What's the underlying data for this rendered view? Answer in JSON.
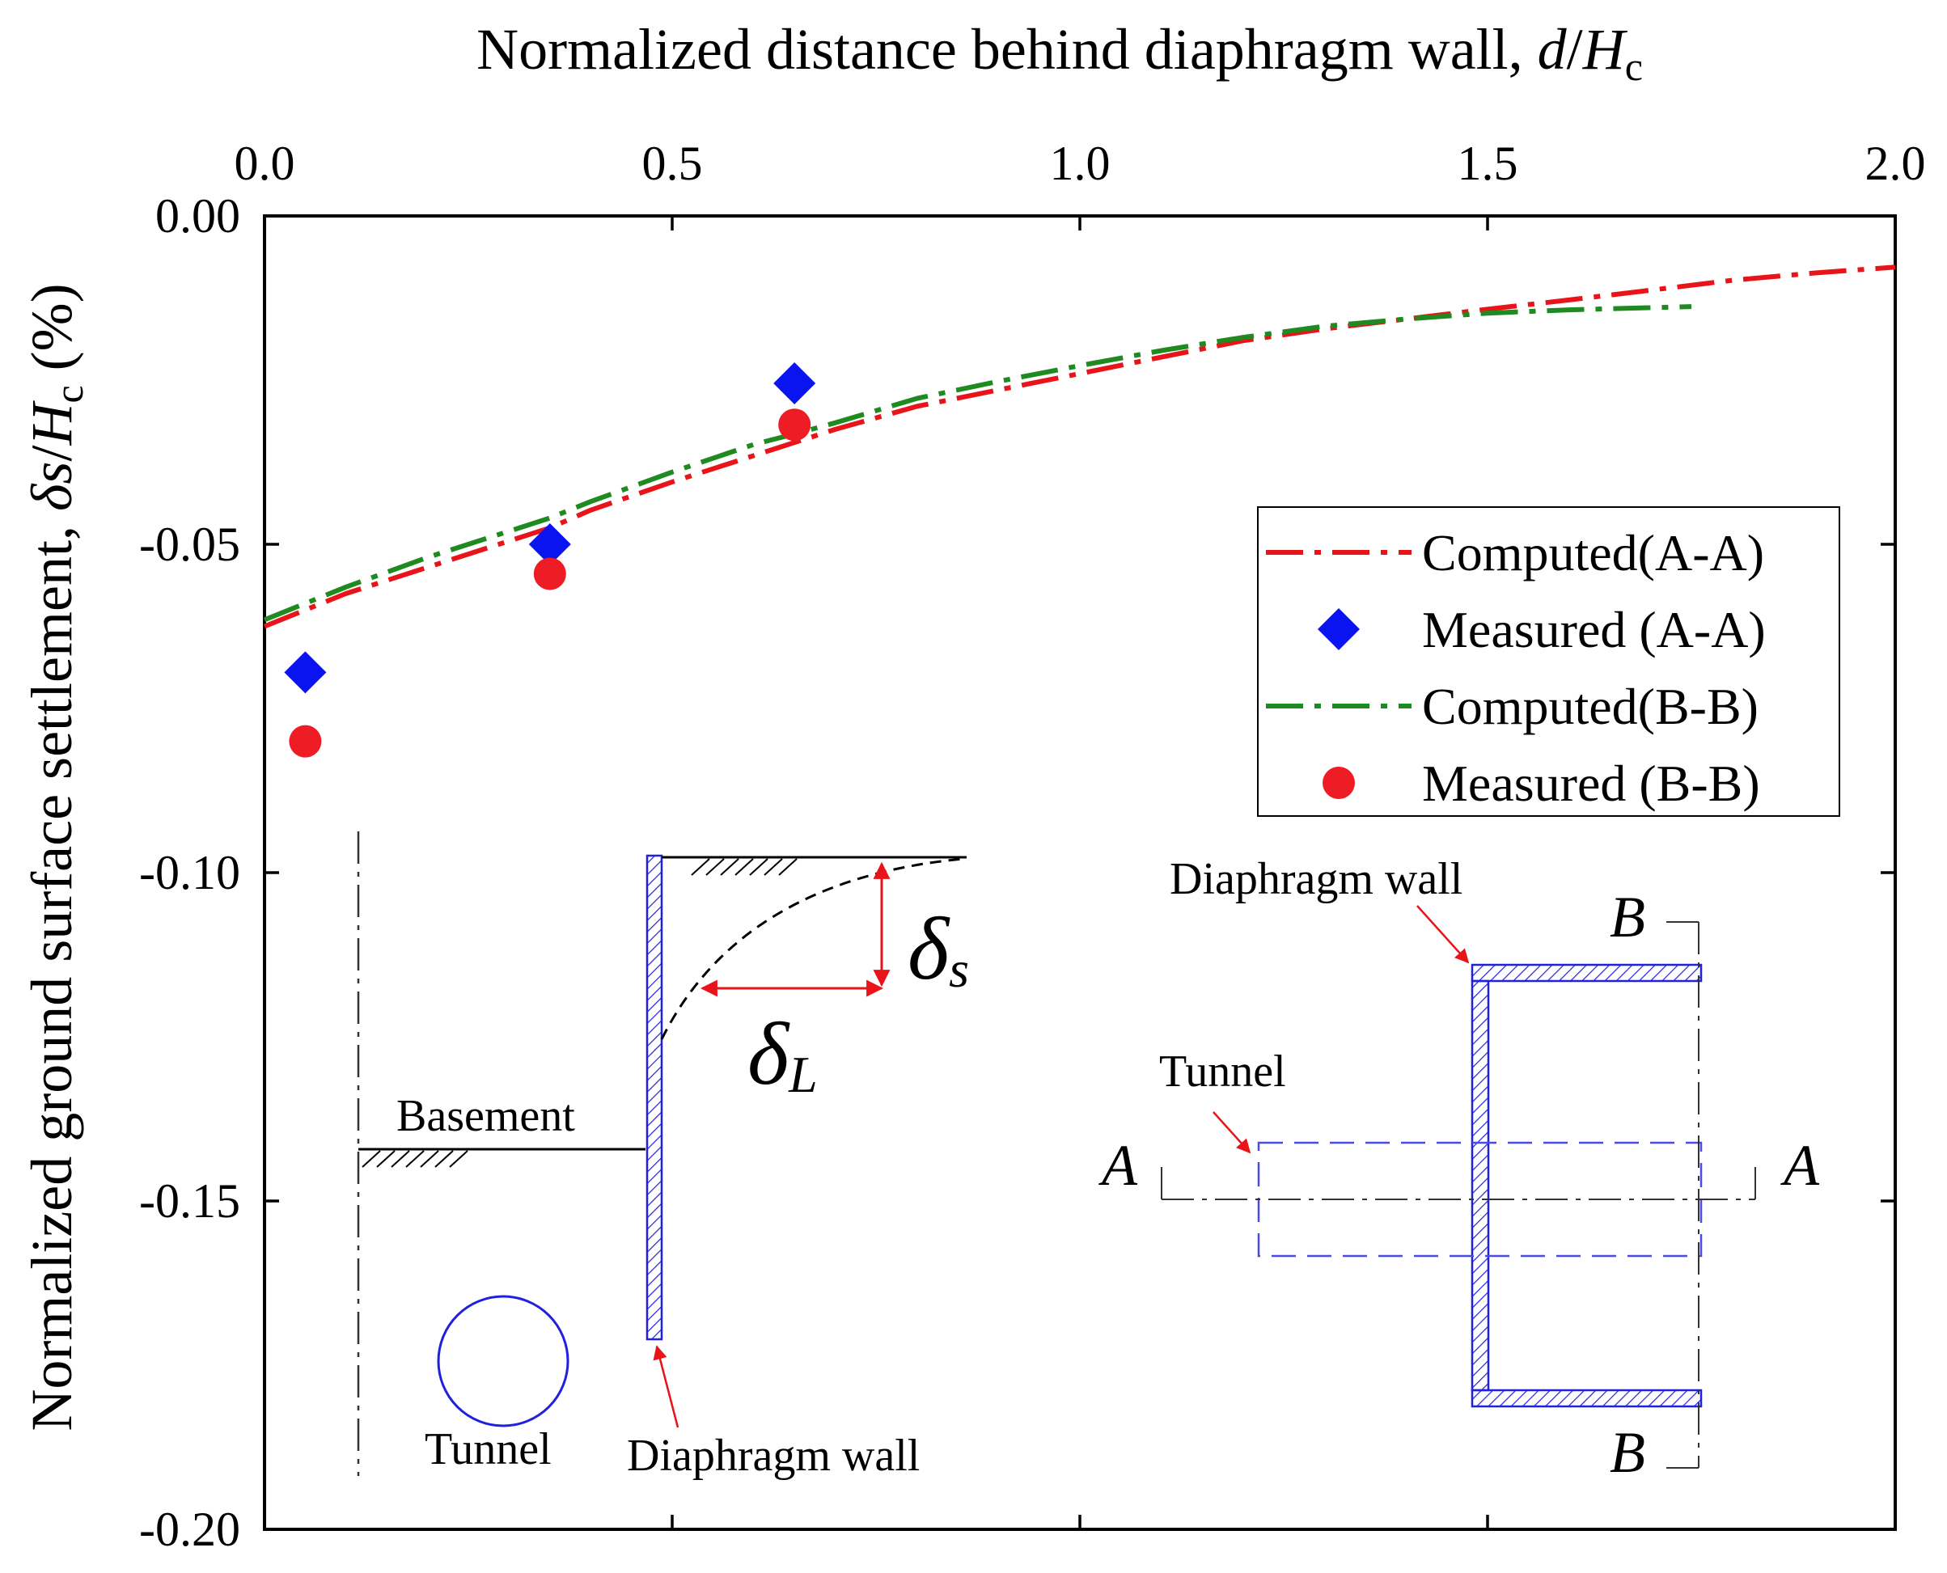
{
  "chart_data": {
    "type": "line",
    "title": "",
    "xlabel": {
      "prefix": "Normalized distance behind diaphragm wall, ",
      "var_italic": "d",
      "slash": "/",
      "var2_italic": "H",
      "sub": "c"
    },
    "ylabel": {
      "prefix": "Normalized ground surface settlement, ",
      "delta": "δ",
      "var_italic": "s",
      "slash": "/",
      "var2_italic": "H",
      "sub": "c",
      "suffix": " (%)"
    },
    "x_axis_position": "top",
    "xlim": [
      0,
      2.0
    ],
    "ylim": [
      -0.2,
      0.0
    ],
    "x_ticks": [
      0.0,
      0.5,
      1.0,
      1.5,
      2.0
    ],
    "x_tick_labels": [
      "0.0",
      "0.5",
      "1.0",
      "1.5",
      "2.0"
    ],
    "y_ticks": [
      0.0,
      -0.05,
      -0.1,
      -0.15,
      -0.2
    ],
    "y_tick_labels": [
      "0.00",
      "-0.05",
      "-0.10",
      "-0.15",
      "-0.20"
    ],
    "grid": false,
    "legend_position": "upper-right",
    "series": [
      {
        "name": "Computed(A-A)",
        "kind": "line",
        "style": "dash-dot",
        "color": "#e8141a",
        "x": [
          0.0,
          0.05,
          0.1,
          0.2,
          0.3,
          0.35,
          0.4,
          0.5,
          0.6,
          0.65,
          0.7,
          0.8,
          0.9,
          1.0,
          1.1,
          1.2,
          1.3,
          1.4,
          1.5,
          1.6,
          1.7,
          1.8,
          1.9,
          2.0
        ],
        "values": [
          -0.0625,
          -0.06,
          -0.0575,
          -0.0535,
          -0.0495,
          -0.0475,
          -0.0448,
          -0.0405,
          -0.0365,
          -0.0345,
          -0.0325,
          -0.029,
          -0.0265,
          -0.024,
          -0.0215,
          -0.019,
          -0.0172,
          -0.0157,
          -0.0142,
          -0.0128,
          -0.0113,
          -0.0098,
          -0.0087,
          -0.0078
        ]
      },
      {
        "name": "Measured (A-A)",
        "kind": "scatter",
        "marker": "diamond",
        "color": "#0a14f0",
        "x": [
          0.05,
          0.35,
          0.65
        ],
        "values": [
          -0.0695,
          -0.05,
          -0.0255
        ]
      },
      {
        "name": "Computed(B-B)",
        "kind": "line",
        "style": "dash-dot",
        "color": "#1f8a1f",
        "x": [
          0.0,
          0.05,
          0.1,
          0.2,
          0.3,
          0.35,
          0.4,
          0.5,
          0.6,
          0.65,
          0.7,
          0.8,
          0.9,
          1.0,
          1.1,
          1.2,
          1.3,
          1.4,
          1.5,
          1.6,
          1.75
        ],
        "values": [
          -0.0615,
          -0.059,
          -0.0565,
          -0.052,
          -0.048,
          -0.046,
          -0.0435,
          -0.039,
          -0.0348,
          -0.0332,
          -0.0315,
          -0.0278,
          -0.0252,
          -0.0228,
          -0.0205,
          -0.0185,
          -0.0168,
          -0.0157,
          -0.0148,
          -0.0143,
          -0.0138
        ]
      },
      {
        "name": "Measured (B-B)",
        "kind": "scatter",
        "marker": "circle",
        "color": "#ee1c24",
        "x": [
          0.05,
          0.35,
          0.65
        ],
        "values": [
          -0.08,
          -0.0545,
          -0.0318
        ]
      }
    ]
  },
  "inset_left": {
    "basement_label": "Basement",
    "tunnel_label": "Tunnel",
    "wall_label": "Diaphragm wall",
    "delta_s": "δ",
    "delta_s_sub": "s",
    "delta_l": "δ",
    "delta_l_sub": "L",
    "wall_color": "#2020e0",
    "tunnel_color": "#2020e0",
    "arrow_color": "#e8141a"
  },
  "inset_right": {
    "wall_label": "Diaphragm wall",
    "tunnel_label": "Tunnel",
    "section_a": "A",
    "section_b": "B",
    "wall_color": "#2020e0",
    "tunnel_color": "#4a4ae8",
    "arrow_color": "#e8141a"
  }
}
